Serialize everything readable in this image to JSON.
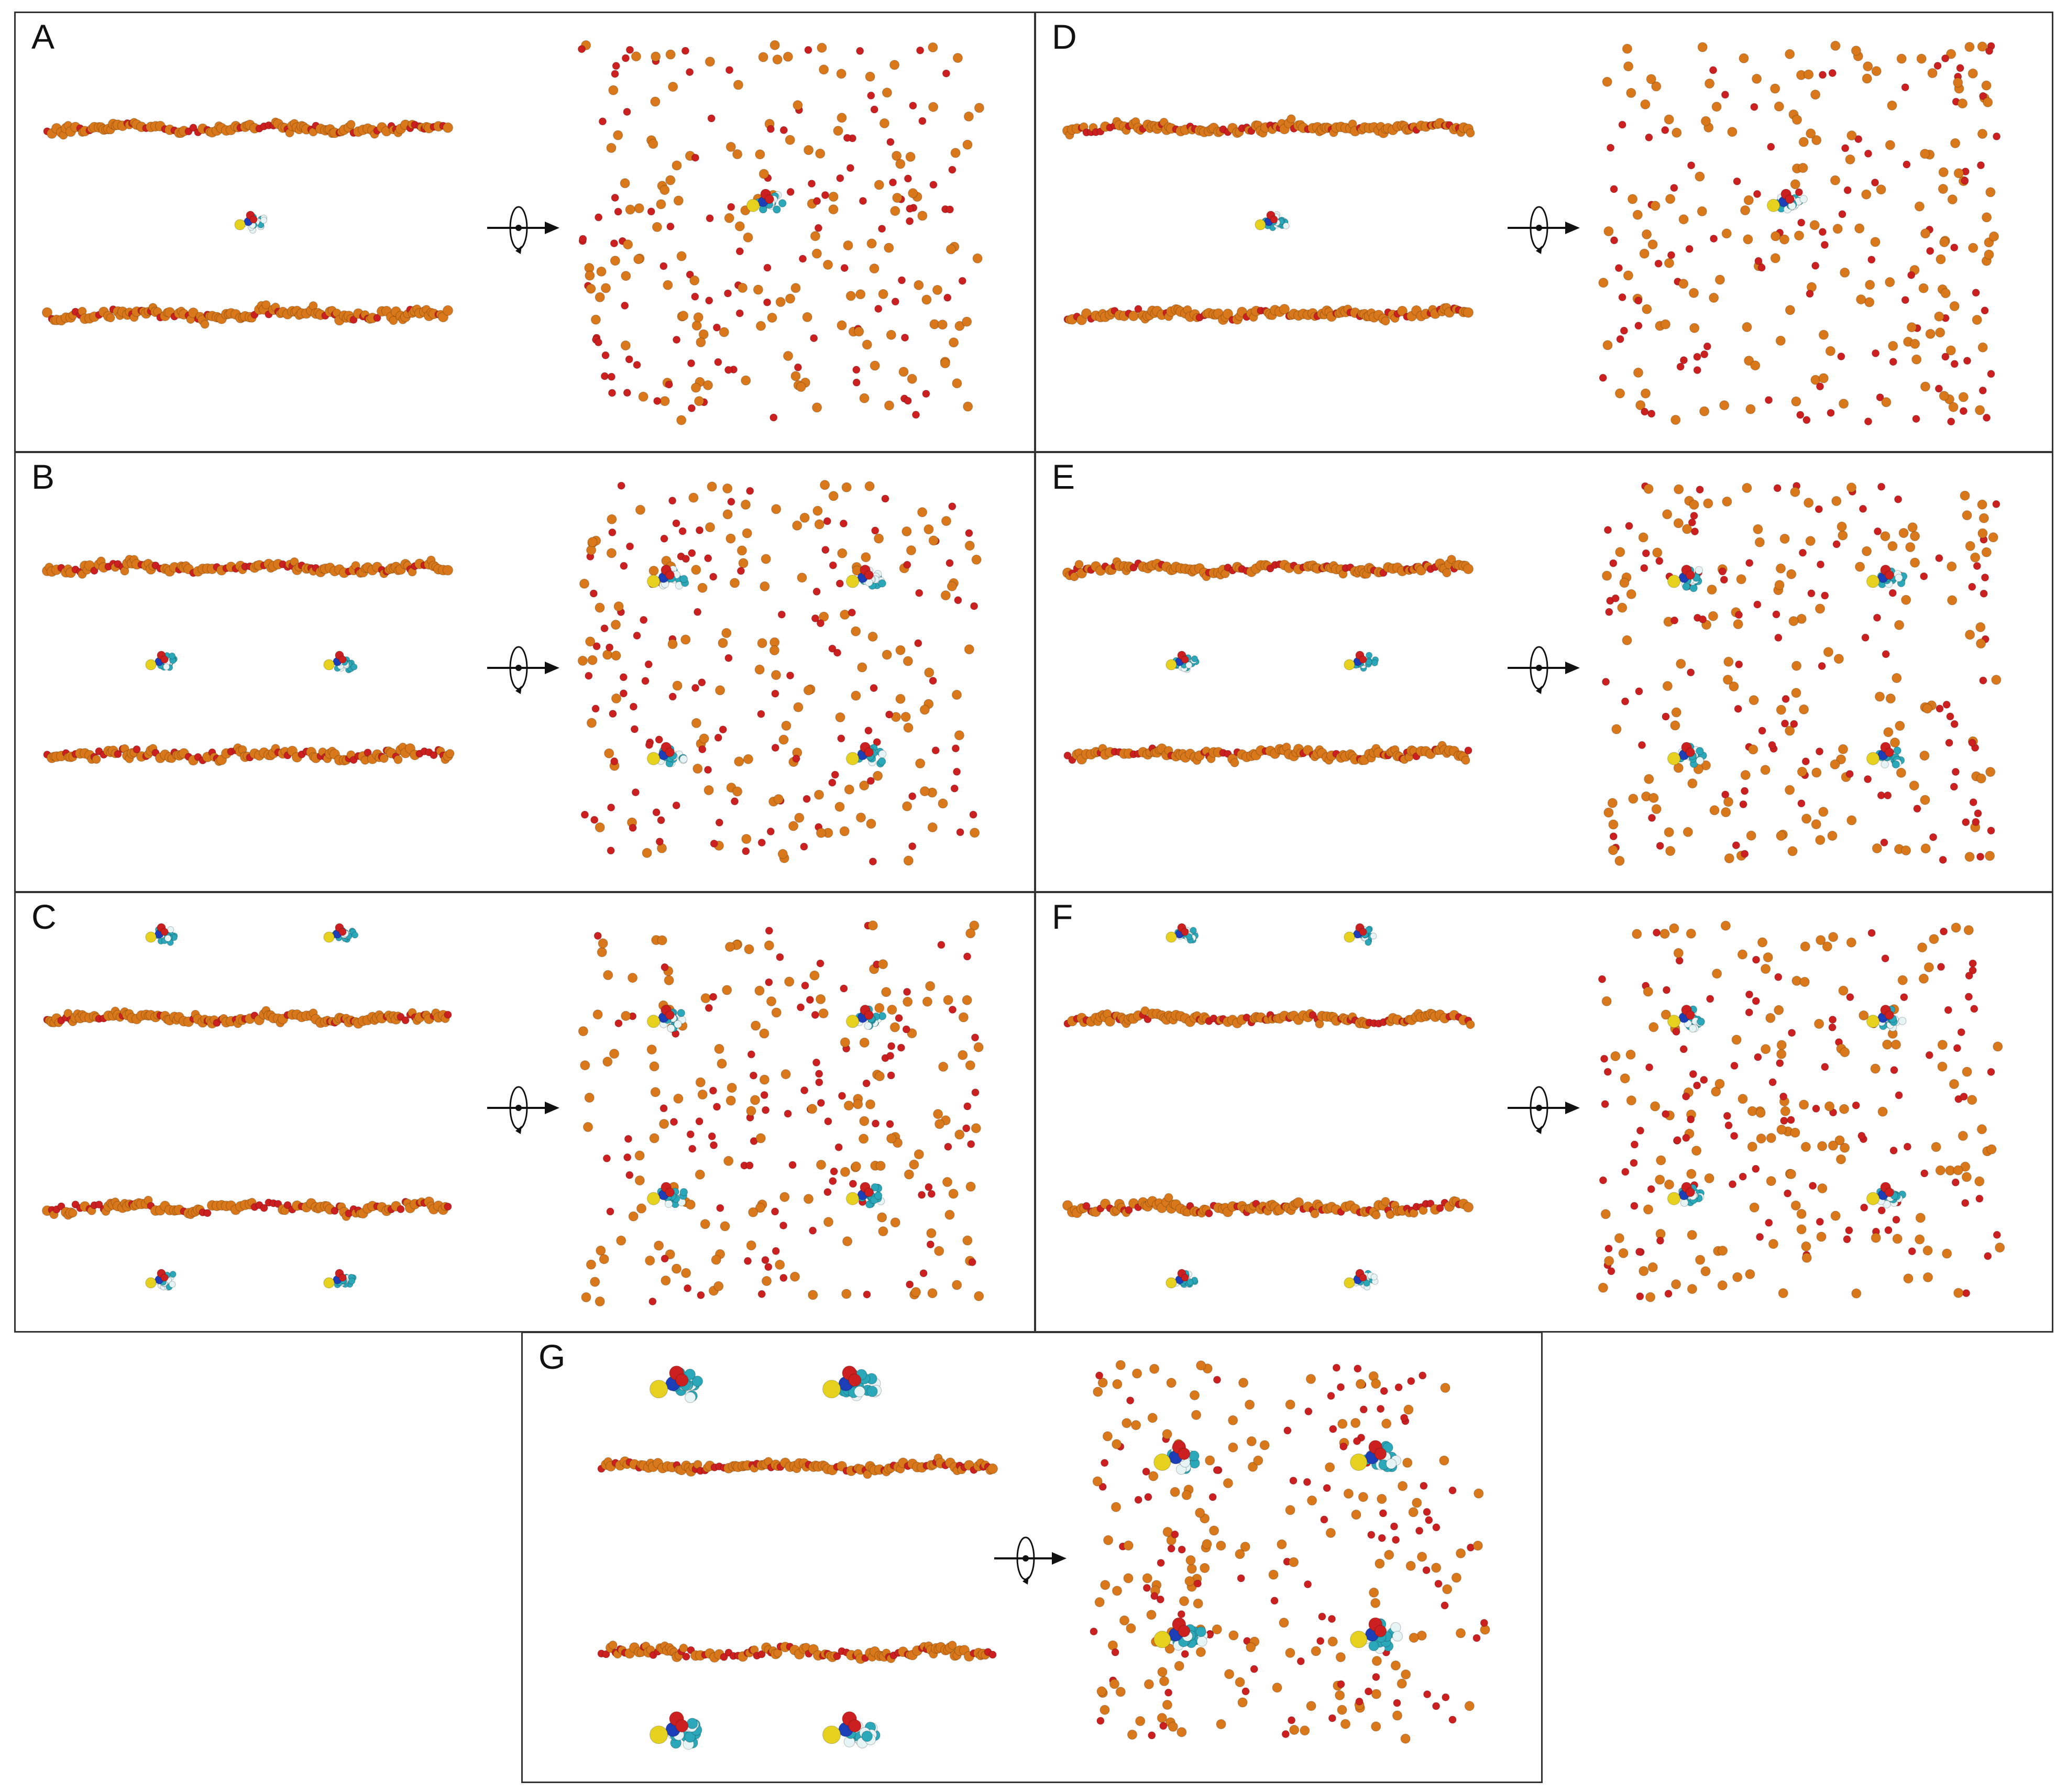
{
  "figure": {
    "background": "#ffffff",
    "colors": {
      "phosphate_orange": "#d9781a",
      "oxygen_red": "#cc1f1f",
      "carbon_cyan": "#2aa7b8",
      "hydrogen_white": "#e6f4f6",
      "nitrogen_blue": "#1c3fb8",
      "sulfur_yellow": "#e6d21e",
      "arrow_black": "#111111"
    },
    "panels": [
      {
        "letter": "A",
        "layout": "single-between",
        "molecules": 1
      },
      {
        "letter": "B",
        "layout": "double-between",
        "molecules": 2
      },
      {
        "letter": "C",
        "layout": "outside",
        "molecules": 4
      },
      {
        "letter": "D",
        "layout": "single-between",
        "molecules": 1
      },
      {
        "letter": "E",
        "layout": "double-between",
        "molecules": 2
      },
      {
        "letter": "F",
        "layout": "outside",
        "molecules": 4
      },
      {
        "letter": "G",
        "layout": "outside-large",
        "molecules": 4
      }
    ]
  }
}
